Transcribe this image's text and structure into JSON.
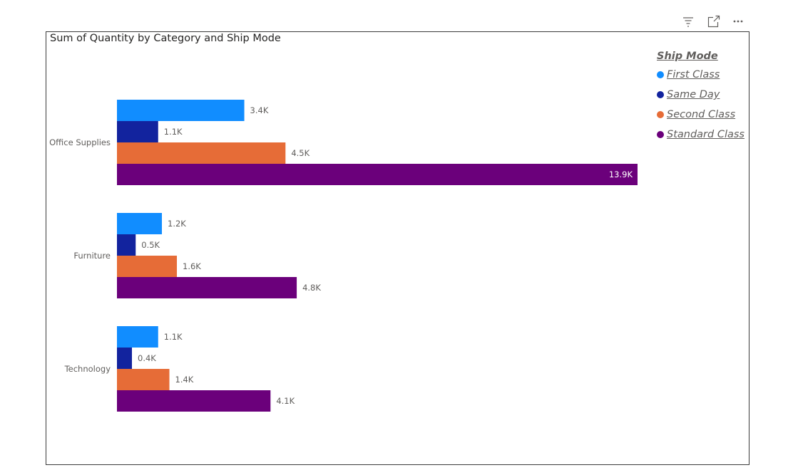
{
  "toolbar": {
    "filter_icon": "filter-icon",
    "focus_icon": "focus-mode-icon",
    "more_icon": "more-options-icon"
  },
  "chart_data": {
    "type": "bar",
    "orientation": "horizontal",
    "title": "Sum of Quantity by Category and Ship Mode",
    "categories": [
      "Office Supplies",
      "Furniture",
      "Technology"
    ],
    "series": [
      {
        "name": "First Class",
        "color": "#118DFF",
        "values": [
          3400,
          1200,
          1100
        ],
        "labels": [
          "3.4K",
          "1.2K",
          "1.1K"
        ]
      },
      {
        "name": "Same Day",
        "color": "#12239E",
        "values": [
          1100,
          500,
          400
        ],
        "labels": [
          "1.1K",
          "0.5K",
          "0.4K"
        ]
      },
      {
        "name": "Second Class",
        "color": "#E66C37",
        "values": [
          4500,
          1600,
          1400
        ],
        "labels": [
          "4.5K",
          "1.6K",
          "1.4K"
        ]
      },
      {
        "name": "Standard Class",
        "color": "#6B007B",
        "values": [
          13900,
          4800,
          4100
        ],
        "labels": [
          "13.9K",
          "4.8K",
          "4.1K"
        ]
      }
    ],
    "legend": {
      "title": "Ship Mode",
      "position": "top-right"
    },
    "xlabel": "",
    "ylabel": "",
    "xlim": [
      0,
      13900
    ],
    "grid": false
  }
}
